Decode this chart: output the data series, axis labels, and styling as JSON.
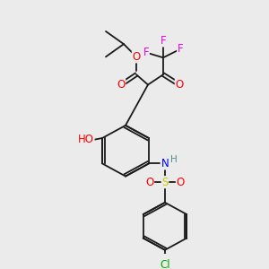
{
  "bg_color": "#ebebeb",
  "bond_color": "#1a1a1a",
  "atom_colors": {
    "O": "#ff0000",
    "N": "#0000ee",
    "F": "#ee00ee",
    "S": "#cccc00",
    "Cl": "#00aa00",
    "H_label": "#4a9090",
    "C": "#1a1a1a"
  },
  "font_size_atom": 8.5,
  "font_size_small": 7.5
}
